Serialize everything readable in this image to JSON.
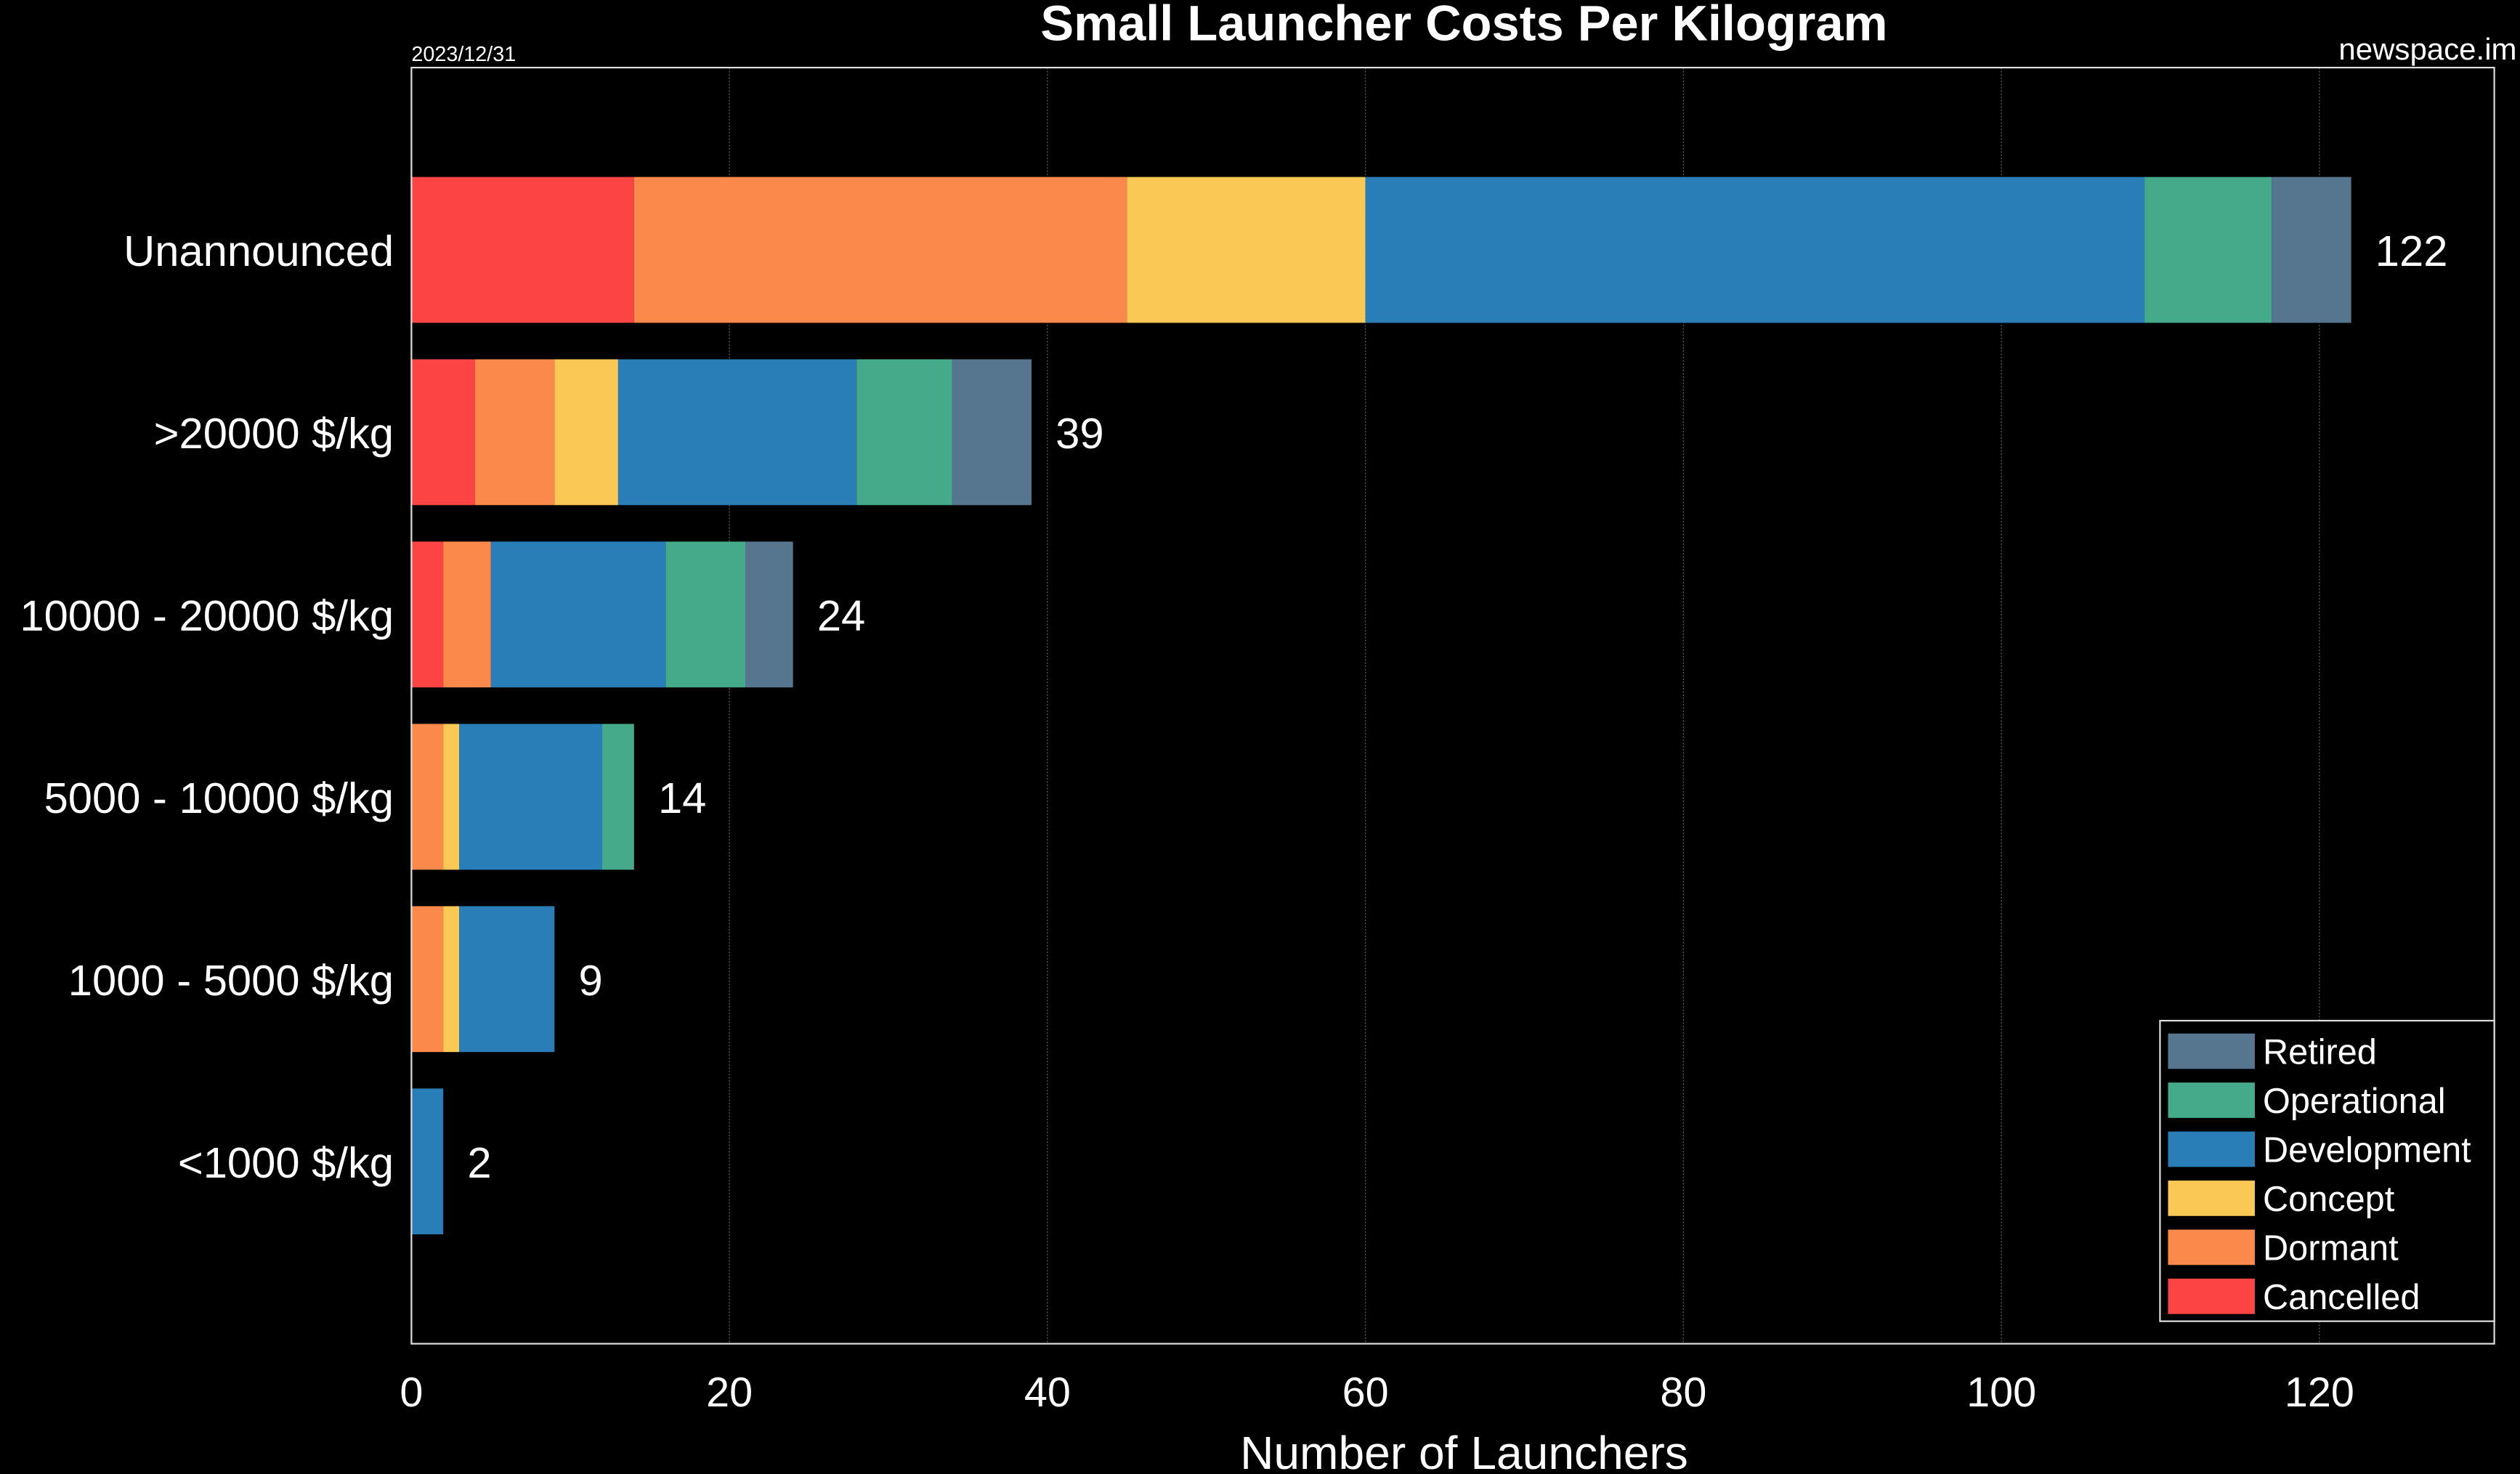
{
  "chart_data": {
    "type": "bar",
    "orientation": "horizontal",
    "stacked": true,
    "title": "Small Launcher Costs Per Kilogram",
    "date_note": "2023/12/31",
    "source_note": "newspace.im",
    "xlabel": "Number of Launchers",
    "ylabel": "",
    "xlim": [
      0,
      131
    ],
    "xticks": [
      0,
      20,
      40,
      60,
      80,
      100,
      120
    ],
    "grid": true,
    "legend_position": "bottom-right",
    "background": "#000000",
    "categories": [
      "<1000 $/kg",
      "1000 - 5000 $/kg",
      "5000 - 10000 $/kg",
      "10000 - 20000 $/kg",
      ">20000 $/kg",
      "Unannounced"
    ],
    "totals": [
      2,
      9,
      14,
      24,
      39,
      122
    ],
    "series": [
      {
        "name": "Cancelled",
        "color": "#fc4444",
        "values": [
          0,
          0,
          0,
          2,
          4,
          14
        ]
      },
      {
        "name": "Dormant",
        "color": "#fa894b",
        "values": [
          0,
          2,
          2,
          3,
          5,
          31
        ]
      },
      {
        "name": "Concept",
        "color": "#fac855",
        "values": [
          0,
          1,
          1,
          0,
          4,
          15
        ]
      },
      {
        "name": "Development",
        "color": "#297eb7",
        "values": [
          2,
          6,
          9,
          11,
          15,
          49
        ]
      },
      {
        "name": "Operational",
        "color": "#44aa8a",
        "values": [
          0,
          0,
          2,
          5,
          6,
          8
        ]
      },
      {
        "name": "Retired",
        "color": "#56758f",
        "values": [
          0,
          0,
          0,
          3,
          5,
          5
        ]
      }
    ],
    "legend_order": [
      "Retired",
      "Operational",
      "Development",
      "Concept",
      "Dormant",
      "Cancelled"
    ]
  }
}
